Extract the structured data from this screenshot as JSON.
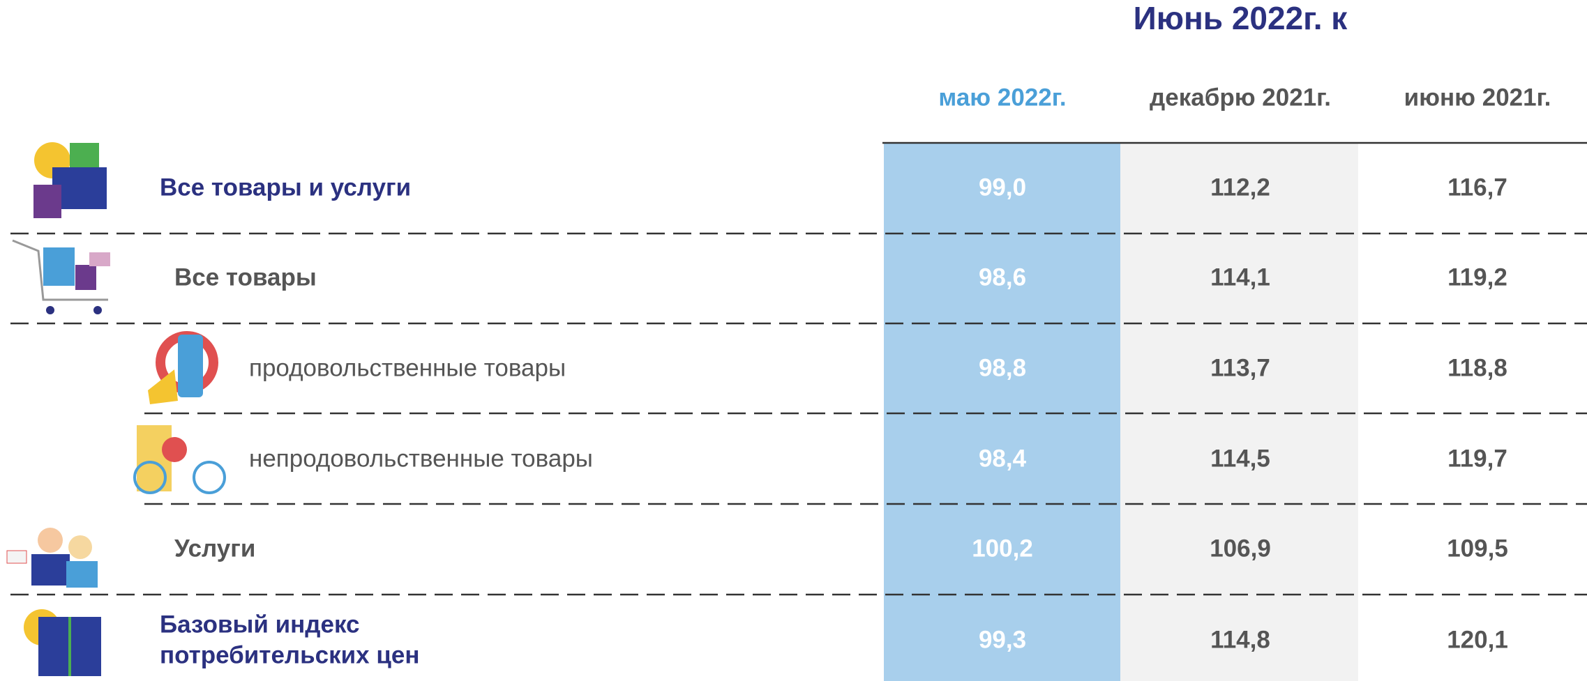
{
  "header": {
    "title": "Июнь 2022г. к"
  },
  "table": {
    "columns": [
      "маю 2022г.",
      "декабрю 2021г.",
      "июню 2021г."
    ],
    "rows": [
      {
        "label": "Все товары и услуги",
        "values": [
          "99,0",
          "112,2",
          "116,7"
        ]
      },
      {
        "label": "Все товары",
        "values": [
          "98,6",
          "114,1",
          "119,2"
        ]
      },
      {
        "label": "продовольственные товары",
        "values": [
          "98,8",
          "113,7",
          "118,8"
        ]
      },
      {
        "label": "непродовольственные товары",
        "values": [
          "98,4",
          "114,5",
          "119,7"
        ]
      },
      {
        "label": "Услуги",
        "values": [
          "100,2",
          "106,9",
          "109,5"
        ]
      },
      {
        "label": [
          "Базовый индекс",
          "потребительских цен"
        ],
        "values": [
          "99,3",
          "114,8",
          "120,1"
        ]
      }
    ]
  }
}
